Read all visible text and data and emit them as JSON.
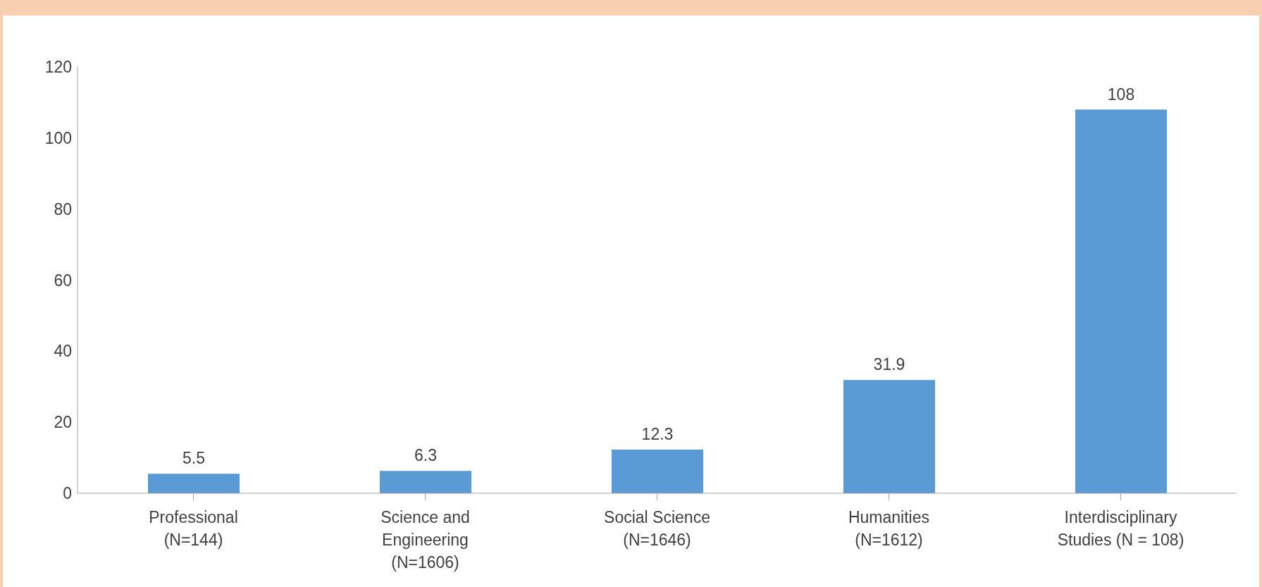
{
  "chart_data": {
    "type": "bar",
    "categories": [
      "Professional (N=144)",
      "Science and Engineering (N=1606)",
      "Social Science (N=1646)",
      "Humanities (N=1612)",
      "Interdisciplinary Studies (N = 108)"
    ],
    "values": [
      5.5,
      6.3,
      12.3,
      31.9,
      108
    ],
    "color": "#5b9bd5",
    "data_labels": true,
    "ylim": [
      0,
      120
    ],
    "yticks": [
      0,
      20,
      40,
      60,
      80,
      100,
      120
    ],
    "grid": false
  }
}
